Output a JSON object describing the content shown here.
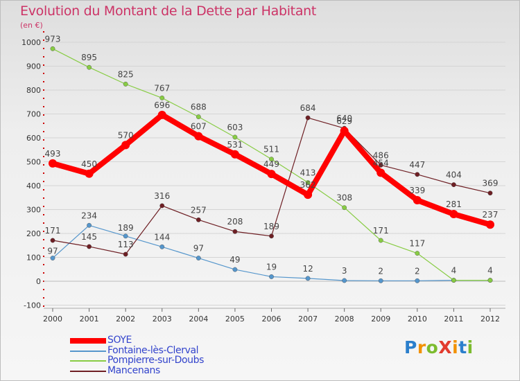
{
  "title": "Evolution du Montant de la Dette par Habitant",
  "subtitle": "(en €)",
  "logo": {
    "text": "ProXiti",
    "colors": [
      "#2b7fcc",
      "#f29100",
      "#7cbb2e",
      "#e23b2e",
      "#f29100",
      "#2b7fcc",
      "#7cbb2e"
    ]
  },
  "chart_data": {
    "type": "line",
    "x": [
      "2000",
      "2001",
      "2002",
      "2003",
      "2004",
      "2005",
      "2006",
      "2007",
      "2008",
      "2009",
      "2010",
      "2011",
      "2012"
    ],
    "ylim": [
      -100,
      1000
    ],
    "yticks": [
      -100,
      0,
      100,
      200,
      300,
      400,
      500,
      600,
      700,
      800,
      900,
      1000
    ],
    "ytick_labels": [
      "-100",
      "0",
      "100",
      "200",
      "300",
      "400",
      "500",
      "600",
      "700",
      "800",
      "900",
      "1000"
    ],
    "grid": "horizontal",
    "legend_position": "bottom-left",
    "series": [
      {
        "name": "SOYE",
        "color": "#ff0000",
        "values": [
          493,
          450,
          570,
          696,
          607,
          531,
          449,
          362,
          629,
          454,
          339,
          281,
          237
        ],
        "labels": [
          "493",
          "450",
          "570",
          "696",
          "607",
          "531",
          "449",
          "362",
          "629",
          "454",
          "339",
          "281",
          "237"
        ]
      },
      {
        "name": "Fontaine-lès-Clerval",
        "color": "#5596cc",
        "values": [
          97,
          234,
          189,
          144,
          97,
          49,
          19,
          12,
          3,
          2,
          2,
          4,
          4
        ],
        "labels": [
          "97",
          "234",
          "189",
          "144",
          "97",
          "49",
          "19",
          "12",
          "3",
          "2",
          "2",
          "4",
          "4"
        ]
      },
      {
        "name": "Pompierre-sur-Doubs",
        "color": "#88cc44",
        "values": [
          973,
          895,
          825,
          767,
          688,
          603,
          511,
          413,
          308,
          171,
          117,
          4,
          4
        ],
        "labels": [
          "973",
          "895",
          "825",
          "767",
          "688",
          "603",
          "511",
          "413",
          "308",
          "171",
          "117",
          "",
          ""
        ]
      },
      {
        "name": "Mancenans",
        "color": "#6e1f24",
        "values": [
          171,
          145,
          113,
          316,
          257,
          208,
          189,
          684,
          640,
          486,
          447,
          404,
          369
        ],
        "labels": [
          "171",
          "145",
          "113",
          "316",
          "257",
          "208",
          "189",
          "684",
          "640",
          "486",
          "447",
          "404",
          "369"
        ]
      }
    ]
  }
}
